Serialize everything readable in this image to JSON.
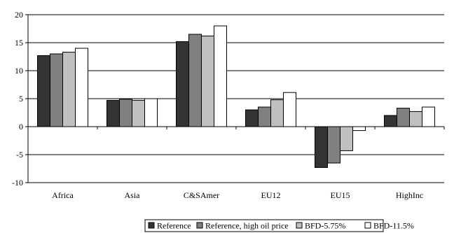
{
  "chart_data": {
    "type": "bar",
    "title": "",
    "xlabel": "",
    "ylabel": "",
    "ylim": [
      -10,
      20
    ],
    "yticks": [
      -10,
      -5,
      0,
      5,
      10,
      15,
      20
    ],
    "grid": true,
    "legend_position": "bottom",
    "categories": [
      "Africa",
      "Asia",
      "C&SAmer",
      "EU12",
      "EU15",
      "HighInc"
    ],
    "series": [
      {
        "name": "Reference",
        "color": "#333333",
        "values": [
          12.7,
          4.7,
          15.2,
          3.0,
          -7.3,
          2.0
        ]
      },
      {
        "name": "Reference, high oil price",
        "color": "#808080",
        "values": [
          13.0,
          4.9,
          16.5,
          3.5,
          -6.5,
          3.3
        ]
      },
      {
        "name": "BFD-5.75%",
        "color": "#c0c0c0",
        "values": [
          13.3,
          4.7,
          16.2,
          4.8,
          -4.3,
          2.7
        ]
      },
      {
        "name": "BFD-11.5%",
        "color": "#ffffff",
        "values": [
          14.0,
          5.0,
          18.0,
          6.1,
          -0.7,
          3.5
        ]
      }
    ]
  }
}
